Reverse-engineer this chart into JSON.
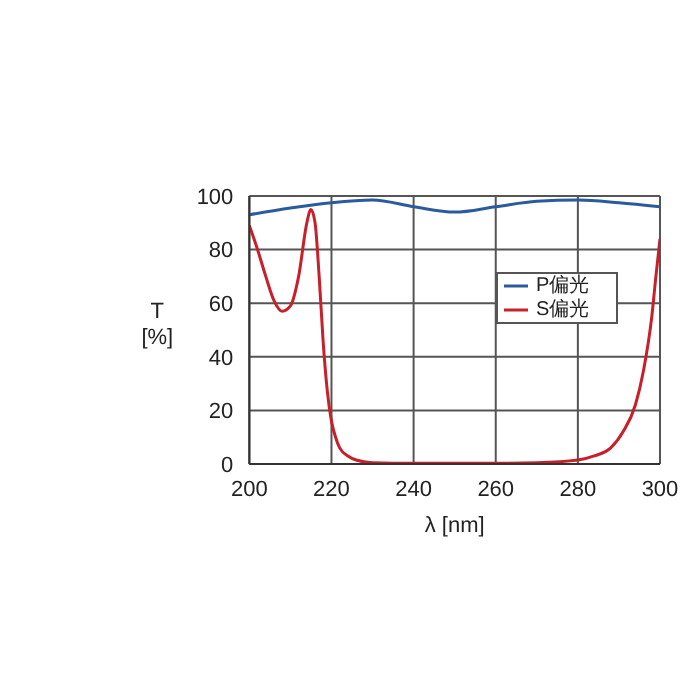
{
  "chart_data": {
    "type": "line",
    "xlabel": "λ [nm]",
    "ylabel": "T\n[%]",
    "xlim": [
      200,
      300
    ],
    "xticks": [
      200,
      220,
      240,
      260,
      280,
      300
    ],
    "ylim": [
      0,
      100
    ],
    "yticks": [
      0,
      20,
      40,
      60,
      80,
      100
    ],
    "grid": true,
    "legend": "right",
    "marker": "none",
    "line_style": "solid",
    "series": [
      {
        "name": "P偏光",
        "color": "#2a5b9c",
        "x": [
          200,
          210,
          220,
          230,
          240,
          250,
          260,
          270,
          280,
          290,
          300
        ],
        "values": [
          93,
          95.5,
          97.5,
          98.5,
          96,
          94,
          96,
          98,
          98.5,
          97.5,
          96
        ]
      },
      {
        "name": "S偏光",
        "color": "#c8202a",
        "x": [
          200,
          202,
          204,
          206,
          208,
          210,
          212,
          214,
          215,
          216,
          217,
          218,
          219,
          220,
          221,
          222,
          224,
          226,
          230,
          240,
          260,
          270,
          280,
          284,
          288,
          291,
          294,
          296,
          298,
          299,
          300
        ],
        "values": [
          89,
          80,
          70,
          61,
          57,
          59,
          70,
          90,
          95,
          90,
          70,
          45,
          27,
          16,
          10,
          6,
          3,
          1.5,
          0.5,
          0.3,
          0.3,
          0.5,
          1.5,
          3,
          6,
          12,
          22,
          35,
          55,
          70,
          84
        ]
      }
    ]
  }
}
